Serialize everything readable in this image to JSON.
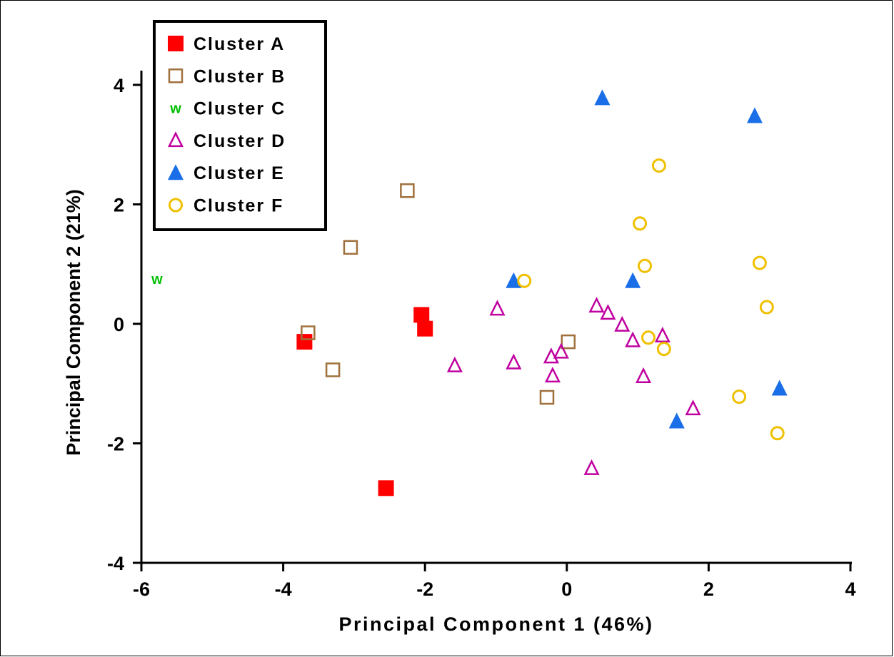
{
  "chart_data": {
    "type": "scatter",
    "xlabel": "Principal Component 1 (46%)",
    "ylabel": "Principal Component 2 (21%)",
    "xlim": [
      -6,
      4
    ],
    "ylim": [
      -4,
      4
    ],
    "x_ticks": [
      -6,
      -4,
      -2,
      0,
      2,
      4
    ],
    "y_ticks": [
      -4,
      -2,
      0,
      2,
      4
    ],
    "x_tick_labels": [
      "-6",
      "-4",
      "-2",
      "0",
      "2",
      "4"
    ],
    "y_tick_labels": [
      "-4",
      "-2",
      "0",
      "2",
      "4"
    ],
    "grid": false,
    "legend_position": "top-left",
    "series": [
      {
        "name": "Cluster A",
        "marker": "filled-square",
        "color": "#ff0000",
        "points": [
          [
            -3.7,
            -0.3
          ],
          [
            -2.05,
            0.15
          ],
          [
            -2.0,
            -0.08
          ],
          [
            -2.55,
            -2.75
          ]
        ]
      },
      {
        "name": "Cluster B",
        "marker": "open-square",
        "color": "#a0703c",
        "points": [
          [
            -2.25,
            2.23
          ],
          [
            -3.05,
            1.28
          ],
          [
            -3.65,
            -0.15
          ],
          [
            -3.3,
            -0.77
          ],
          [
            0.02,
            -0.3
          ],
          [
            -0.28,
            -1.23
          ]
        ]
      },
      {
        "name": "Cluster C",
        "marker": "w",
        "color": "#00c000",
        "symbol": "w",
        "points": [
          [
            -5.78,
            0.75
          ]
        ]
      },
      {
        "name": "Cluster D",
        "marker": "open-triangle",
        "color": "#c000a0",
        "points": [
          [
            -0.98,
            0.25
          ],
          [
            -1.58,
            -0.7
          ],
          [
            -0.75,
            -0.65
          ],
          [
            -0.22,
            -0.55
          ],
          [
            -0.08,
            -0.47
          ],
          [
            -0.2,
            -0.87
          ],
          [
            0.42,
            0.3
          ],
          [
            0.58,
            0.18
          ],
          [
            0.78,
            -0.02
          ],
          [
            0.93,
            -0.28
          ],
          [
            1.35,
            -0.2
          ],
          [
            1.08,
            -0.88
          ],
          [
            1.78,
            -1.42
          ],
          [
            0.35,
            -2.42
          ]
        ]
      },
      {
        "name": "Cluster E",
        "marker": "filled-triangle",
        "color": "#1a6ee8",
        "points": [
          [
            0.5,
            3.78
          ],
          [
            2.65,
            3.48
          ],
          [
            -0.75,
            0.72
          ],
          [
            0.93,
            0.72
          ],
          [
            3.0,
            -1.08
          ],
          [
            1.55,
            -1.63
          ]
        ]
      },
      {
        "name": "Cluster F",
        "marker": "open-circle",
        "color": "#f0c000",
        "points": [
          [
            1.3,
            2.65
          ],
          [
            1.03,
            1.68
          ],
          [
            1.1,
            0.97
          ],
          [
            -0.6,
            0.72
          ],
          [
            2.72,
            1.02
          ],
          [
            2.82,
            0.28
          ],
          [
            1.15,
            -0.23
          ],
          [
            1.37,
            -0.42
          ],
          [
            2.43,
            -1.22
          ],
          [
            2.97,
            -1.83
          ]
        ]
      }
    ]
  }
}
